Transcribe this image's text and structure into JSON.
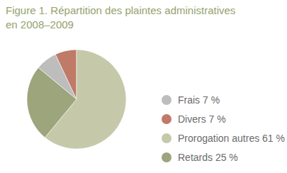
{
  "chart_data": {
    "type": "pie",
    "title": "Figure 1. Répartition des plaintes administratives en 2008–2009",
    "categories": [
      "Frais 7 %",
      "Divers 7 %",
      "Prorogation autres 61 %",
      "Retards 25 %"
    ],
    "values": [
      7,
      7,
      61,
      25
    ],
    "colors": [
      "#bdbdbd",
      "#c07a68",
      "#c5c9aa",
      "#9ca57b"
    ],
    "legend": "right"
  }
}
